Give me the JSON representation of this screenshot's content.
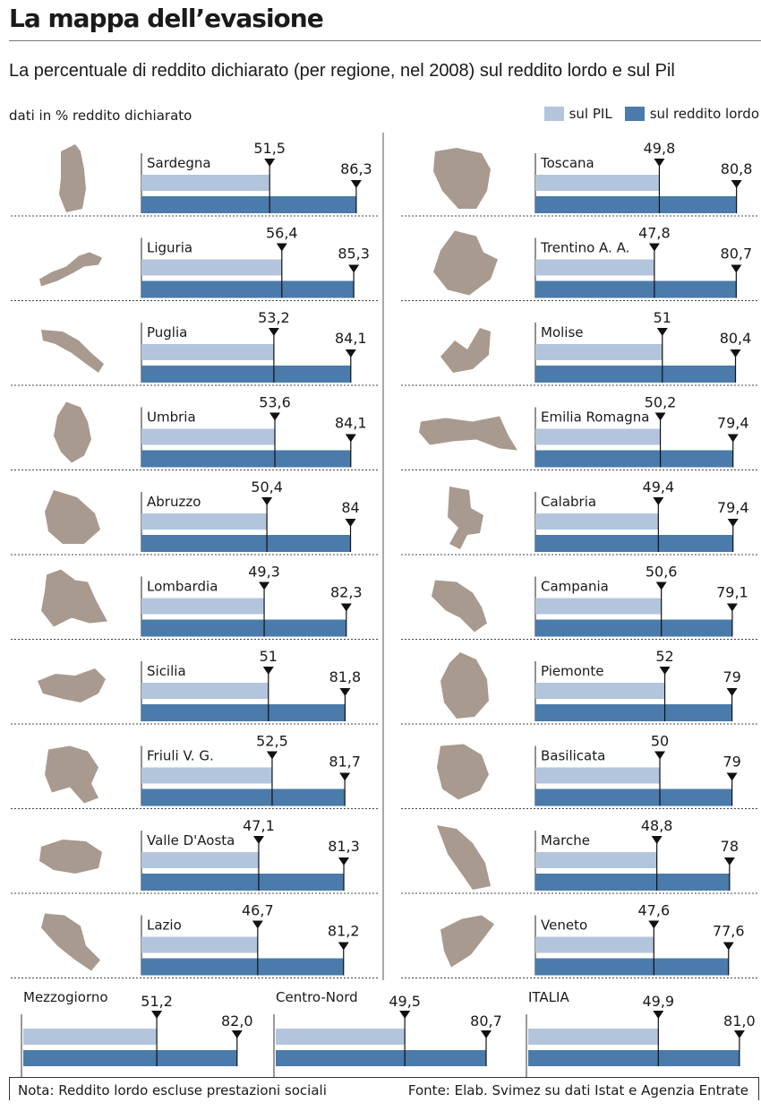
{
  "title": "La mappa dell’evasione",
  "subtitle": "La percentuale di reddito dichiarato (per regione, nel 2008) sul reddito lordo e sul Pil",
  "unit_label": "dati in % reddito dichiarato",
  "legend": [
    {
      "label": "sul PIL",
      "color": "#b3c5dc"
    },
    {
      "label": "sul reddito lordo",
      "color": "#4a7baa"
    }
  ],
  "footer": {
    "note": "Nota: Reddito lordo escluse prestazioni sociali",
    "source": "Fonte: Elab. Svimez su dati Istat e Agenzia Entrate"
  },
  "colors": {
    "pil": "#b3c5dc",
    "lordo": "#4a7baa",
    "map": "#a89a8e"
  },
  "chart_data": {
    "type": "bar",
    "series": [
      {
        "name": "sul PIL",
        "color": "#b3c5dc"
      },
      {
        "name": "sul reddito lordo",
        "color": "#4a7baa"
      }
    ],
    "regions_left": [
      {
        "name": "Sardegna",
        "pil": "51,5",
        "lordo": "86,3",
        "pil_v": 51.5,
        "lordo_v": 86.3
      },
      {
        "name": "Liguria",
        "pil": "56,4",
        "lordo": "85,3",
        "pil_v": 56.4,
        "lordo_v": 85.3
      },
      {
        "name": "Puglia",
        "pil": "53,2",
        "lordo": "84,1",
        "pil_v": 53.2,
        "lordo_v": 84.1
      },
      {
        "name": "Umbria",
        "pil": "53,6",
        "lordo": "84,1",
        "pil_v": 53.6,
        "lordo_v": 84.1
      },
      {
        "name": "Abruzzo",
        "pil": "50,4",
        "lordo": "84",
        "pil_v": 50.4,
        "lordo_v": 84.0
      },
      {
        "name": "Lombardia",
        "pil": "49,3",
        "lordo": "82,3",
        "pil_v": 49.3,
        "lordo_v": 82.3
      },
      {
        "name": "Sicilia",
        "pil": "51",
        "lordo": "81,8",
        "pil_v": 51.0,
        "lordo_v": 81.8
      },
      {
        "name": "Friuli V. G.",
        "pil": "52,5",
        "lordo": "81,7",
        "pil_v": 52.5,
        "lordo_v": 81.7
      },
      {
        "name": "Valle D'Aosta",
        "pil": "47,1",
        "lordo": "81,3",
        "pil_v": 47.1,
        "lordo_v": 81.3
      },
      {
        "name": "Lazio",
        "pil": "46,7",
        "lordo": "81,2",
        "pil_v": 46.7,
        "lordo_v": 81.2
      }
    ],
    "regions_right": [
      {
        "name": "Toscana",
        "pil": "49,8",
        "lordo": "80,8",
        "pil_v": 49.8,
        "lordo_v": 80.8
      },
      {
        "name": "Trentino A. A.",
        "pil": "47,8",
        "lordo": "80,7",
        "pil_v": 47.8,
        "lordo_v": 80.7
      },
      {
        "name": "Molise",
        "pil": "51",
        "lordo": "80,4",
        "pil_v": 51.0,
        "lordo_v": 80.4
      },
      {
        "name": "Emilia Romagna",
        "pil": "50,2",
        "lordo": "79,4",
        "pil_v": 50.2,
        "lordo_v": 79.4
      },
      {
        "name": "Calabria",
        "pil": "49,4",
        "lordo": "79,4",
        "pil_v": 49.4,
        "lordo_v": 79.4
      },
      {
        "name": "Campania",
        "pil": "50,6",
        "lordo": "79,1",
        "pil_v": 50.6,
        "lordo_v": 79.1
      },
      {
        "name": "Piemonte",
        "pil": "52",
        "lordo": "79",
        "pil_v": 52.0,
        "lordo_v": 79.0
      },
      {
        "name": "Basilicata",
        "pil": "50",
        "lordo": "79",
        "pil_v": 50.0,
        "lordo_v": 79.0
      },
      {
        "name": "Marche",
        "pil": "48,8",
        "lordo": "78",
        "pil_v": 48.8,
        "lordo_v": 78.0
      },
      {
        "name": "Veneto",
        "pil": "47,6",
        "lordo": "77,6",
        "pil_v": 47.6,
        "lordo_v": 77.6
      }
    ],
    "aggregates": [
      {
        "name": "Mezzogiorno",
        "pil": "51,2",
        "lordo": "82,0",
        "pil_v": 51.2,
        "lordo_v": 82.0
      },
      {
        "name": "Centro-Nord",
        "pil": "49,5",
        "lordo": "80,7",
        "pil_v": 49.5,
        "lordo_v": 80.7
      },
      {
        "name": "ITALIA",
        "pil": "49,9",
        "lordo": "81,0",
        "pil_v": 49.9,
        "lordo_v": 81.0
      }
    ]
  }
}
